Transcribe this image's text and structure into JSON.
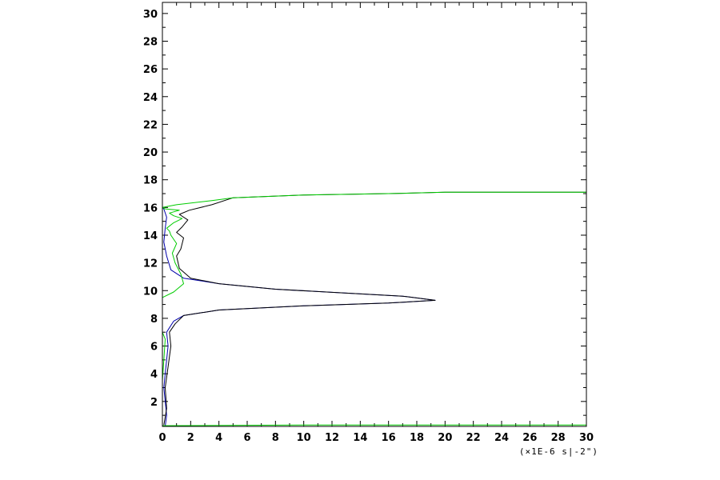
{
  "chart_data": {
    "type": "line",
    "title": "",
    "xlabel": "",
    "ylabel": "",
    "x_unit_label": "(×1E-6 s|-2\")",
    "xlim": [
      0,
      30
    ],
    "ylim": [
      0.2,
      30.8
    ],
    "x_ticks": [
      0,
      2,
      4,
      6,
      8,
      10,
      12,
      14,
      16,
      18,
      20,
      22,
      24,
      26,
      28,
      30
    ],
    "y_ticks": [
      2,
      4,
      6,
      8,
      10,
      12,
      14,
      16,
      18,
      20,
      22,
      24,
      26,
      28,
      30
    ],
    "grid": false,
    "legend": "none",
    "series": [
      {
        "color": "#0000aa",
        "points": [
          [
            0.2,
            0.2
          ],
          [
            0.3,
            1.0
          ],
          [
            0.2,
            2.0
          ],
          [
            0.1,
            3.0
          ],
          [
            0.2,
            4.0
          ],
          [
            0.3,
            5.0
          ],
          [
            0.4,
            6.0
          ],
          [
            0.3,
            7.0
          ],
          [
            0.8,
            7.8
          ],
          [
            1.5,
            8.2
          ],
          [
            4.0,
            8.6
          ],
          [
            10.0,
            8.9
          ],
          [
            16.0,
            9.1
          ],
          [
            19.3,
            9.3
          ],
          [
            17.0,
            9.6
          ],
          [
            8.0,
            10.1
          ],
          [
            4.0,
            10.5
          ],
          [
            1.5,
            10.9
          ],
          [
            0.6,
            11.5
          ],
          [
            0.3,
            12.5
          ],
          [
            0.1,
            13.5
          ],
          [
            0.2,
            14.5
          ],
          [
            0.3,
            15.3
          ],
          [
            0.1,
            15.9
          ],
          [
            0.0,
            16.0
          ]
        ]
      },
      {
        "color": "#000000",
        "points": [
          [
            0.1,
            0.3
          ],
          [
            0.3,
            1.5
          ],
          [
            0.2,
            3.0
          ],
          [
            0.4,
            4.5
          ],
          [
            0.6,
            6.0
          ],
          [
            0.5,
            7.0
          ],
          [
            0.9,
            7.6
          ],
          [
            1.5,
            8.2
          ],
          [
            4.0,
            8.6
          ],
          [
            10.0,
            8.9
          ],
          [
            16.0,
            9.1
          ],
          [
            19.3,
            9.3
          ],
          [
            17.0,
            9.6
          ],
          [
            8.0,
            10.1
          ],
          [
            4.0,
            10.5
          ],
          [
            2.0,
            10.9
          ],
          [
            1.2,
            11.6
          ],
          [
            1.0,
            12.5
          ],
          [
            1.3,
            13.0
          ],
          [
            1.5,
            13.8
          ],
          [
            1.0,
            14.2
          ],
          [
            1.4,
            14.6
          ],
          [
            1.8,
            15.1
          ],
          [
            1.2,
            15.5
          ],
          [
            1.9,
            15.8
          ],
          [
            3.5,
            16.2
          ],
          [
            5.0,
            16.7
          ],
          [
            10.0,
            16.9
          ],
          [
            16.0,
            17.0
          ],
          [
            20.0,
            17.1
          ],
          [
            25.0,
            17.1
          ],
          [
            30.0,
            17.1
          ]
        ]
      },
      {
        "color": "#00cc00",
        "points": [
          [
            0.0,
            3.5
          ],
          [
            0.1,
            5.0
          ],
          [
            0.2,
            6.5
          ],
          [
            0.0,
            7.0
          ]
        ]
      },
      {
        "color": "#00cc00",
        "points": [
          [
            0.0,
            9.5
          ],
          [
            0.8,
            9.9
          ],
          [
            1.5,
            10.5
          ],
          [
            1.3,
            11.2
          ],
          [
            0.9,
            12.0
          ],
          [
            0.7,
            12.7
          ],
          [
            1.0,
            13.4
          ],
          [
            0.6,
            14.0
          ],
          [
            0.5,
            14.3
          ],
          [
            0.3,
            14.5
          ],
          [
            0.8,
            14.9
          ],
          [
            1.4,
            15.2
          ],
          [
            0.8,
            15.4
          ],
          [
            0.5,
            15.6
          ],
          [
            1.2,
            15.8
          ],
          [
            0.2,
            15.9
          ],
          [
            0.0,
            16.0
          ],
          [
            1.0,
            16.2
          ],
          [
            3.5,
            16.5
          ],
          [
            5.0,
            16.7
          ],
          [
            10.0,
            16.9
          ],
          [
            16.0,
            17.0
          ],
          [
            20.0,
            17.1
          ],
          [
            25.0,
            17.1
          ],
          [
            30.0,
            17.1
          ]
        ]
      },
      {
        "color": "#00cc00",
        "points": [
          [
            0.0,
            0.25
          ],
          [
            10.0,
            0.3
          ],
          [
            20.0,
            0.3
          ],
          [
            30.0,
            0.3
          ]
        ]
      }
    ]
  }
}
